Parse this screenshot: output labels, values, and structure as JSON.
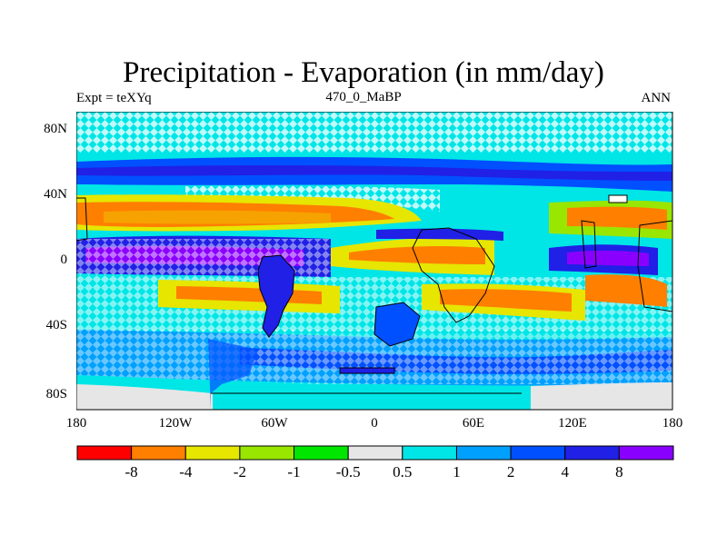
{
  "title": "Precipitation - Evaporation (in mm/day)",
  "subtitle_left": "Expt = teXYq",
  "subtitle_center": "470_0_MaBP",
  "subtitle_right": "ANN",
  "lat_labels": [
    "80N",
    "40N",
    "0",
    "40S",
    "80S"
  ],
  "lon_labels": [
    "180",
    "120W",
    "60W",
    "0",
    "60E",
    "120E",
    "180"
  ],
  "colorbar": {
    "colors": [
      "#ff0000",
      "#ff7f00",
      "#e6e600",
      "#99e600",
      "#00e600",
      "#e6e6e6",
      "#00e6e6",
      "#00a0ff",
      "#0050ff",
      "#2020e6",
      "#8a00ff"
    ],
    "labels": [
      "-8",
      "-4",
      "-2",
      "-1",
      "-0.5",
      "0.5",
      "1",
      "2",
      "4",
      "8"
    ]
  },
  "map_colors": {
    "ocean_base": "#00e6e6",
    "land_outline": "#000000",
    "hatch_light": "#e6f8ff"
  }
}
